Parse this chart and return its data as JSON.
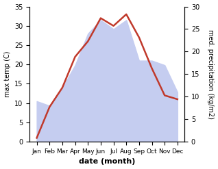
{
  "months": [
    "Jan",
    "Feb",
    "Mar",
    "Apr",
    "May",
    "Jun",
    "Jul",
    "Aug",
    "Sep",
    "Oct",
    "Nov",
    "Dec"
  ],
  "temperature": [
    1,
    9,
    14,
    22,
    26,
    32,
    30,
    33,
    27,
    19,
    12,
    11
  ],
  "precipitation": [
    9,
    8,
    12,
    17,
    24,
    27,
    25,
    27,
    18,
    18,
    17,
    11
  ],
  "temp_color": "#c0392b",
  "precip_fill_color": "#c5cdf0",
  "xlabel": "date (month)",
  "ylabel_left": "max temp (C)",
  "ylabel_right": "med. precipitation (kg/m2)",
  "ylim_left": [
    0,
    35
  ],
  "ylim_right": [
    0,
    30
  ],
  "yticks_left": [
    0,
    5,
    10,
    15,
    20,
    25,
    30,
    35
  ],
  "yticks_right": [
    0,
    5,
    10,
    15,
    20,
    25,
    30
  ],
  "bg_color": "#ffffff"
}
